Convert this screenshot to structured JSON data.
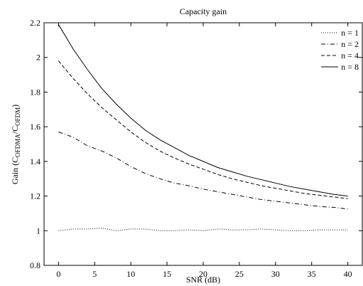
{
  "chart_data": {
    "type": "line",
    "title": "Capacity gain",
    "xlabel": "SNR (dB)",
    "ylabel": {
      "prefix": "Gain (C",
      "num_sub": "OFDMA",
      "slash": "/C",
      "den_sub": "OFDM",
      "suffix": ")"
    },
    "xlim": [
      -2,
      42
    ],
    "ylim": [
      0.8,
      2.2
    ],
    "xticks": [
      0,
      5,
      10,
      15,
      20,
      25,
      30,
      35,
      40
    ],
    "yticks": [
      0.8,
      1,
      1.2,
      1.4,
      1.6,
      1.8,
      2,
      2.2
    ],
    "grid": false,
    "legend_position": "top-right",
    "x": [
      0,
      2,
      4,
      6,
      8,
      10,
      12,
      14,
      16,
      18,
      20,
      22,
      24,
      26,
      28,
      30,
      32,
      34,
      36,
      38,
      40
    ],
    "series": [
      {
        "name": "n = 1",
        "style": "dotted",
        "values": [
          1.0,
          1.01,
          1.01,
          1.015,
          1.0,
          1.01,
          1.01,
          1.0,
          1.0,
          1.005,
          1.0,
          1.01,
          1.005,
          1.005,
          1.01,
          1.005,
          1.0,
          1.0,
          1.005,
          1.005,
          1.005
        ]
      },
      {
        "name": "n = 2",
        "style": "dashdot",
        "values": [
          1.57,
          1.54,
          1.49,
          1.46,
          1.42,
          1.37,
          1.33,
          1.3,
          1.275,
          1.26,
          1.24,
          1.225,
          1.21,
          1.195,
          1.18,
          1.17,
          1.16,
          1.15,
          1.14,
          1.135,
          1.125
        ]
      },
      {
        "name": "n = 4",
        "style": "dashed",
        "values": [
          1.98,
          1.88,
          1.79,
          1.71,
          1.64,
          1.57,
          1.51,
          1.46,
          1.42,
          1.385,
          1.355,
          1.325,
          1.3,
          1.28,
          1.26,
          1.245,
          1.23,
          1.215,
          1.205,
          1.195,
          1.185
        ]
      },
      {
        "name": "n = 8",
        "style": "solid",
        "values": [
          2.19,
          2.05,
          1.93,
          1.82,
          1.73,
          1.65,
          1.58,
          1.525,
          1.48,
          1.435,
          1.4,
          1.365,
          1.34,
          1.315,
          1.295,
          1.275,
          1.255,
          1.24,
          1.225,
          1.21,
          1.2
        ]
      }
    ]
  }
}
